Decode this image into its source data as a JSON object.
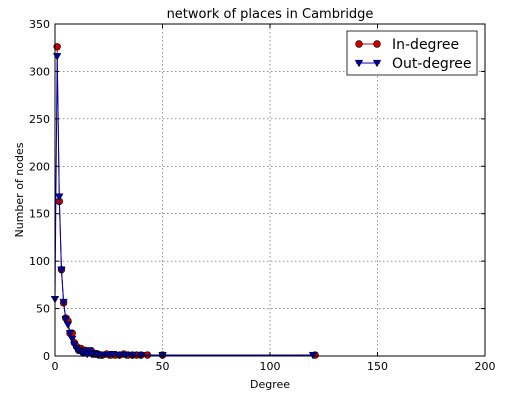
{
  "chart_data": {
    "type": "line",
    "title": "network of places in Cambridge",
    "xlabel": "Degree",
    "ylabel": "Number of nodes",
    "xlim": [
      0,
      200
    ],
    "ylim": [
      0,
      350
    ],
    "xticks": [
      0,
      50,
      100,
      150,
      200
    ],
    "yticks": [
      0,
      50,
      100,
      150,
      200,
      250,
      300,
      350
    ],
    "grid": true,
    "legend_position": "top-right",
    "series": [
      {
        "name": "In-degree",
        "color": "#cc0000",
        "marker": "circle",
        "x": [
          1,
          2,
          3,
          4,
          5,
          6,
          7,
          8,
          9,
          10,
          11,
          12,
          13,
          14,
          15,
          16,
          17,
          18,
          19,
          20,
          21,
          22,
          24,
          26,
          28,
          30,
          32,
          34,
          36,
          38,
          40,
          43,
          50,
          121
        ],
        "y": [
          326,
          163,
          91,
          56,
          40,
          37,
          24,
          24,
          14,
          10,
          6,
          8,
          4,
          6,
          3,
          4,
          5,
          2,
          2,
          2,
          1,
          1,
          2,
          1,
          1,
          1,
          2,
          1,
          1,
          1,
          1,
          1,
          1,
          1
        ]
      },
      {
        "name": "Out-degree",
        "color": "#0000aa",
        "marker": "triangle-down",
        "x": [
          0,
          1,
          2,
          3,
          4,
          5,
          6,
          7,
          8,
          9,
          10,
          11,
          12,
          13,
          14,
          15,
          16,
          17,
          18,
          19,
          20,
          22,
          25,
          27,
          30,
          33,
          36,
          40,
          50,
          120
        ],
        "y": [
          60,
          316,
          168,
          91,
          57,
          39,
          33,
          24,
          18,
          12,
          8,
          6,
          5,
          3,
          4,
          2,
          6,
          2,
          3,
          2,
          1,
          1,
          1,
          2,
          1,
          1,
          1,
          1,
          1,
          1
        ]
      }
    ]
  }
}
